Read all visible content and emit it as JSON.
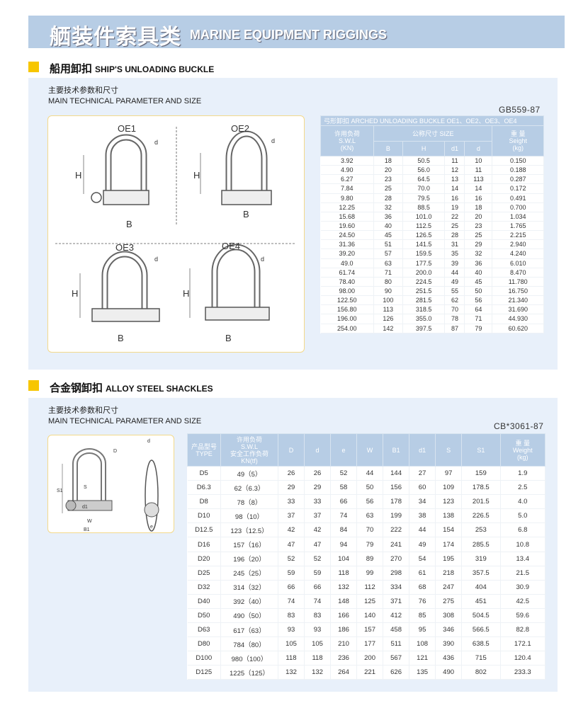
{
  "banner": {
    "title_cn": "舾装件索具类",
    "title_en": "MARINE EQUIPMENT RIGGINGS"
  },
  "colors": {
    "banner": "#b7cde5",
    "accent": "#f7c600",
    "panel": "#e8f0fa",
    "table_header": "#b7cde5"
  },
  "section1": {
    "title_cn": "船用卸扣",
    "title_en": "SHIP'S UNLOADING BUCKLE",
    "sub_cn": "主要技术参数和尺寸",
    "sub_en": "MAIN TECHNICAL PARAMETER AND SIZE",
    "standard": "GB559-87",
    "diagrams": {
      "oe1": "OE1",
      "oe2": "OE2",
      "oe3": "OE3",
      "oe4": "OE4",
      "H": "H",
      "B": "B",
      "d": "d",
      "d1": "d1"
    },
    "table": {
      "title": "弓形卸扣 ARCHED UNLOADING BUCKLE OE1、OE2、OE3、OE4",
      "swl_cn": "许用负荷",
      "swl_en": "S.W.L",
      "swl_unit": "(KN)",
      "size_header": "公称尺寸  SIZE",
      "weight_cn": "重 量",
      "weight_en": "Seight",
      "weight_unit": "(kg)",
      "cols": [
        "B",
        "H",
        "d1",
        "d"
      ],
      "rows": [
        [
          "3.92",
          "18",
          "50.5",
          "11",
          "10",
          "0.150"
        ],
        [
          "4.90",
          "20",
          "56.0",
          "12",
          "11",
          "0.188"
        ],
        [
          "6.27",
          "23",
          "64.5",
          "13",
          "113",
          "0.287"
        ],
        [
          "7.84",
          "25",
          "70.0",
          "14",
          "14",
          "0.172"
        ],
        [
          "9.80",
          "28",
          "79.5",
          "16",
          "16",
          "0.491"
        ],
        [
          "12.25",
          "32",
          "88.5",
          "19",
          "18",
          "0.700"
        ],
        [
          "15.68",
          "36",
          "101.0",
          "22",
          "20",
          "1.034"
        ],
        [
          "19.60",
          "40",
          "112.5",
          "25",
          "23",
          "1.765"
        ],
        [
          "24.50",
          "45",
          "126.5",
          "28",
          "25",
          "2.215"
        ],
        [
          "31.36",
          "51",
          "141.5",
          "31",
          "29",
          "2.940"
        ],
        [
          "39.20",
          "57",
          "159.5",
          "35",
          "32",
          "4.240"
        ],
        [
          "49.0",
          "63",
          "177.5",
          "39",
          "36",
          "6.010"
        ],
        [
          "61.74",
          "71",
          "200.0",
          "44",
          "40",
          "8.470"
        ],
        [
          "78.40",
          "80",
          "224.5",
          "49",
          "45",
          "11.780"
        ],
        [
          "98.00",
          "90",
          "251.5",
          "55",
          "50",
          "16.750"
        ],
        [
          "122.50",
          "100",
          "281.5",
          "62",
          "56",
          "21.340"
        ],
        [
          "156.80",
          "113",
          "318.5",
          "70",
          "64",
          "31.690"
        ],
        [
          "196.00",
          "126",
          "355.0",
          "78",
          "71",
          "44.930"
        ],
        [
          "254.00",
          "142",
          "397.5",
          "87",
          "79",
          "60.620"
        ]
      ]
    }
  },
  "section2": {
    "title_cn": "合金钢卸扣",
    "title_en": "ALLOY STEEL SHACKLES",
    "sub_cn": "主要技术参数和尺寸",
    "sub_en": "MAIN TECHNICAL PARAMETER AND SIZE",
    "standard": "CB*3061-87",
    "diagram": {
      "D": "D",
      "d": "d",
      "S": "S",
      "S1": "S1",
      "W": "W",
      "B1": "B1",
      "e": "e",
      "d1": "d1"
    },
    "table": {
      "type_cn": "产品型号",
      "type_en": "TYPE",
      "swl_cn": "许用负荷",
      "swl_en": "S.W.L",
      "swl_cn2": "安全工作负荷",
      "swl_unit": "KN(tf)",
      "cols": [
        "D",
        "d",
        "e",
        "W",
        "B1",
        "d1",
        "S",
        "S1"
      ],
      "weight_cn": "重 量",
      "weight_en": "Weight",
      "weight_unit": "(kg)",
      "rows": [
        [
          "D5",
          "49（5）",
          "26",
          "26",
          "52",
          "44",
          "144",
          "27",
          "97",
          "159",
          "1.9"
        ],
        [
          "D6.3",
          "62（6.3）",
          "29",
          "29",
          "58",
          "50",
          "156",
          "60",
          "109",
          "178.5",
          "2.5"
        ],
        [
          "D8",
          "78（8）",
          "33",
          "33",
          "66",
          "56",
          "178",
          "34",
          "123",
          "201.5",
          "4.0"
        ],
        [
          "D10",
          "98（10）",
          "37",
          "37",
          "74",
          "63",
          "199",
          "38",
          "138",
          "226.5",
          "5.0"
        ],
        [
          "D12.5",
          "123（12.5）",
          "42",
          "42",
          "84",
          "70",
          "222",
          "44",
          "154",
          "253",
          "6.8"
        ],
        [
          "D16",
          "157（16）",
          "47",
          "47",
          "94",
          "79",
          "241",
          "49",
          "174",
          "285.5",
          "10.8"
        ],
        [
          "D20",
          "196（20）",
          "52",
          "52",
          "104",
          "89",
          "270",
          "54",
          "195",
          "319",
          "13.4"
        ],
        [
          "D25",
          "245（25）",
          "59",
          "59",
          "118",
          "99",
          "298",
          "61",
          "218",
          "357.5",
          "21.5"
        ],
        [
          "D32",
          "314（32）",
          "66",
          "66",
          "132",
          "112",
          "334",
          "68",
          "247",
          "404",
          "30.9"
        ],
        [
          "D40",
          "392（40）",
          "74",
          "74",
          "148",
          "125",
          "371",
          "76",
          "275",
          "451",
          "42.5"
        ],
        [
          "D50",
          "490（50）",
          "83",
          "83",
          "166",
          "140",
          "412",
          "85",
          "308",
          "504.5",
          "59.6"
        ],
        [
          "D63",
          "617（63）",
          "93",
          "93",
          "186",
          "157",
          "458",
          "95",
          "346",
          "566.5",
          "82.8"
        ],
        [
          "D80",
          "784（80）",
          "105",
          "105",
          "210",
          "177",
          "511",
          "108",
          "390",
          "638.5",
          "172.1"
        ],
        [
          "D100",
          "980（100）",
          "118",
          "118",
          "236",
          "200",
          "567",
          "121",
          "436",
          "715",
          "120.4"
        ],
        [
          "D125",
          "1225（125）",
          "132",
          "132",
          "264",
          "221",
          "626",
          "135",
          "490",
          "802",
          "233.3"
        ]
      ]
    }
  }
}
